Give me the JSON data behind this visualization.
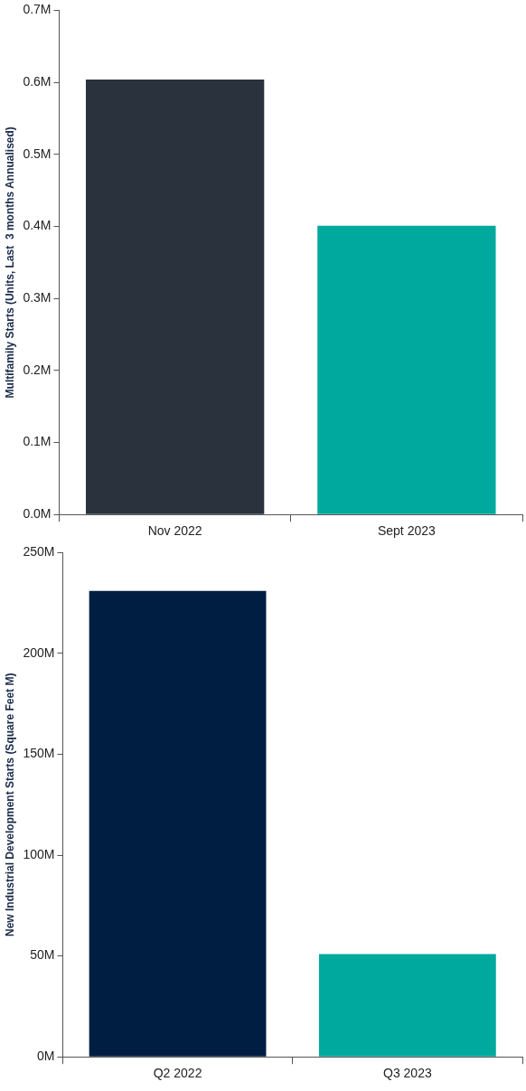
{
  "chart_data": [
    {
      "type": "bar",
      "ylabel": "Multifamily Starts (Units, Last  3 months Annualised)",
      "categories": [
        "Nov 2022",
        "Sept 2023"
      ],
      "values": [
        0.604,
        0.401
      ],
      "colors": [
        "#29323d",
        "#00a99d"
      ],
      "ylim": [
        0,
        0.7
      ],
      "yticks": [
        {
          "value": 0,
          "label": "0.0M"
        },
        {
          "value": 0.1,
          "label": "0.1M"
        },
        {
          "value": 0.2,
          "label": "0.2M"
        },
        {
          "value": 0.3,
          "label": "0.3M"
        },
        {
          "value": 0.4,
          "label": "0.4M"
        },
        {
          "value": 0.5,
          "label": "0.5M"
        },
        {
          "value": 0.6,
          "label": "0.6M"
        },
        {
          "value": 0.7,
          "label": "0.7M"
        }
      ]
    },
    {
      "type": "bar",
      "ylabel": "New Industrial Development Starts (Square Feet M)",
      "categories": [
        "Q2 2022",
        "Q3 2023"
      ],
      "values": [
        231,
        51
      ],
      "colors": [
        "#001e42",
        "#00a99d"
      ],
      "ylim": [
        0,
        250
      ],
      "yticks": [
        {
          "value": 0,
          "label": "0M"
        },
        {
          "value": 50,
          "label": "50M"
        },
        {
          "value": 100,
          "label": "100M"
        },
        {
          "value": 150,
          "label": "150M"
        },
        {
          "value": 200,
          "label": "200M"
        },
        {
          "value": 250,
          "label": "250M"
        }
      ]
    }
  ]
}
